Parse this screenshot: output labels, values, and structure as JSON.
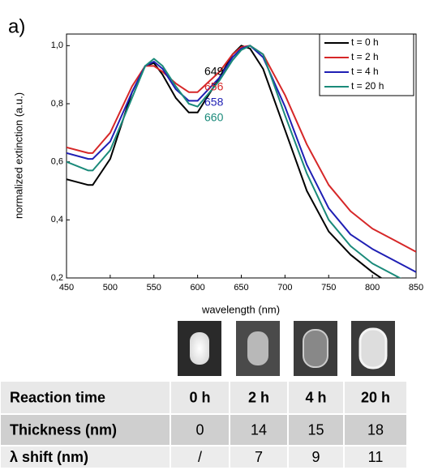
{
  "panel_label": "a)",
  "chart_data": {
    "type": "line",
    "x_label": "wavelength (nm)",
    "y_label": "normalized extinction (a.u.)",
    "x": [
      450,
      475,
      480,
      500,
      525,
      540,
      550,
      560,
      575,
      590,
      600,
      625,
      640,
      650,
      660,
      675,
      700,
      725,
      750,
      775,
      800,
      825,
      850
    ],
    "series": [
      {
        "name": "t = 0 h",
        "color": "#000000",
        "values": [
          0.54,
          0.52,
          0.52,
          0.61,
          0.84,
          0.93,
          0.94,
          0.9,
          0.82,
          0.77,
          0.77,
          0.89,
          0.97,
          1.0,
          0.99,
          0.92,
          0.71,
          0.5,
          0.36,
          0.28,
          0.22,
          0.17,
          0.14
        ]
      },
      {
        "name": "t = 2 h",
        "color": "#d62728",
        "values": [
          0.65,
          0.63,
          0.63,
          0.7,
          0.86,
          0.93,
          0.93,
          0.91,
          0.87,
          0.84,
          0.84,
          0.91,
          0.97,
          0.995,
          1.0,
          0.97,
          0.83,
          0.66,
          0.52,
          0.43,
          0.37,
          0.33,
          0.29
        ]
      },
      {
        "name": "t = 4 h",
        "color": "#1f1fb4",
        "values": [
          0.63,
          0.61,
          0.61,
          0.67,
          0.84,
          0.93,
          0.945,
          0.92,
          0.85,
          0.81,
          0.81,
          0.89,
          0.96,
          0.99,
          1.0,
          0.96,
          0.79,
          0.59,
          0.44,
          0.35,
          0.3,
          0.26,
          0.22
        ]
      },
      {
        "name": "t = 20 h",
        "color": "#1a8a7a",
        "values": [
          0.6,
          0.57,
          0.57,
          0.64,
          0.82,
          0.93,
          0.955,
          0.93,
          0.86,
          0.8,
          0.79,
          0.88,
          0.95,
          0.985,
          1.0,
          0.97,
          0.76,
          0.56,
          0.4,
          0.31,
          0.25,
          0.21,
          0.17
        ]
      }
    ],
    "xlim": [
      450,
      850
    ],
    "ylim": [
      0.2,
      1.04
    ],
    "xticks": [
      450,
      500,
      550,
      600,
      650,
      700,
      750,
      800,
      850
    ],
    "yticks": [
      {
        "value": 0.2,
        "label": "0,2"
      },
      {
        "value": 0.4,
        "label": "0,4"
      },
      {
        "value": 0.6,
        "label": "0,6"
      },
      {
        "value": 0.8,
        "label": "0,8"
      },
      {
        "value": 1.0,
        "label": "1,0"
      }
    ],
    "legend": "upper right",
    "annotations": [
      {
        "text": "649",
        "color": "#000000"
      },
      {
        "text": "656",
        "color": "#d62728"
      },
      {
        "text": "658",
        "color": "#1f1fb4"
      },
      {
        "text": "660",
        "color": "#1a8a7a"
      }
    ]
  },
  "table": {
    "rows": [
      [
        "Reaction time",
        "0 h",
        "2 h",
        "4 h",
        "20 h"
      ],
      [
        "Thickness (nm)",
        0,
        14,
        15,
        18
      ],
      [
        "λ shift (nm)",
        "/",
        7,
        9,
        11
      ]
    ]
  }
}
